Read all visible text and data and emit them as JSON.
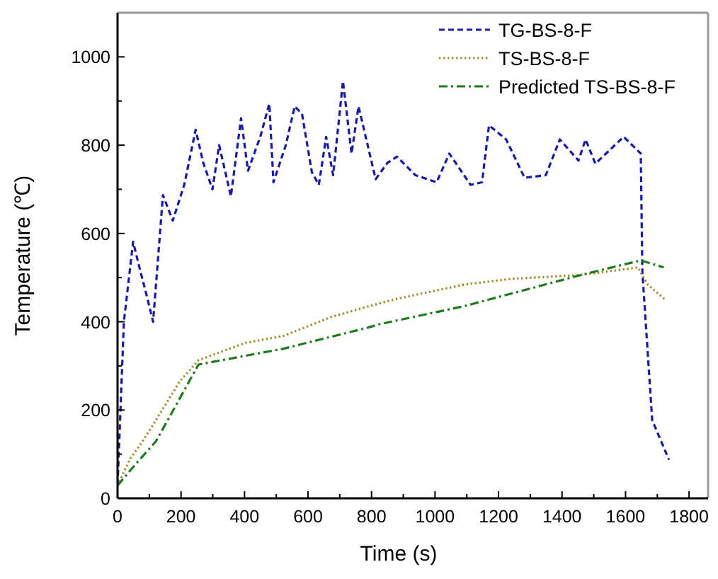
{
  "chart_data": {
    "type": "line",
    "xlabel": "Time (s)",
    "ylabel": "Temperature (℃)",
    "xlim": [
      0,
      1860
    ],
    "ylim": [
      0,
      1100
    ],
    "xticks": [
      0,
      {
        "value": 100,
        "label": null
      },
      200,
      {
        "value": 300,
        "label": null
      },
      400,
      {
        "value": 500,
        "label": null
      },
      600,
      {
        "value": 700,
        "label": null
      },
      800,
      {
        "value": 900,
        "label": null
      },
      1000,
      {
        "value": 1100,
        "label": null
      },
      1200,
      {
        "value": 1300,
        "label": null
      },
      1400,
      {
        "value": 1500,
        "label": null
      },
      1600,
      {
        "value": 1700,
        "label": null
      },
      1800
    ],
    "yticks": [
      0,
      {
        "value": 100,
        "label": null
      },
      200,
      {
        "value": 300,
        "label": null
      },
      400,
      {
        "value": 500,
        "label": null
      },
      600,
      {
        "value": 700,
        "label": null
      },
      800,
      {
        "value": 900,
        "label": null
      },
      1000
    ],
    "grid": false,
    "legend": "top right",
    "marker": "none",
    "series": [
      {
        "name": "TG-BS-8-F",
        "color": "#1a1aa8",
        "line_style": "dashed",
        "x": [
          0,
          20,
          49,
          70,
          95,
          112,
          143,
          174,
          210,
          246,
          270,
          299,
          320,
          357,
          389,
          411,
          450,
          478,
          491,
          530,
          558,
          581,
          612,
          634,
          657,
          679,
          710,
          737,
          759,
          813,
          850,
          880,
          938,
          1005,
          1045,
          1112,
          1148,
          1170,
          1224,
          1282,
          1349,
          1393,
          1452,
          1474,
          1505,
          1594,
          1648,
          1653,
          1684,
          1737
        ],
        "values": [
          30,
          400,
          581,
          520,
          450,
          400,
          687,
          629,
          710,
          835,
          760,
          700,
          800,
          684,
          861,
          742,
          820,
          894,
          716,
          800,
          888,
          871,
          739,
          710,
          819,
          732,
          945,
          781,
          888,
          723,
          760,
          774,
          732,
          716,
          781,
          710,
          716,
          845,
          813,
          726,
          732,
          813,
          765,
          813,
          758,
          819,
          781,
          513,
          177,
          87
        ]
      },
      {
        "name": "TS-BS-8-F",
        "color": "#a08c28",
        "line_style": "dotted",
        "x": [
          0,
          40,
          76,
          121,
          196,
          255,
          402,
          523,
          670,
          790,
          880,
          1090,
          1237,
          1460,
          1639,
          1670,
          1728
        ],
        "values": [
          29,
          90,
          126,
          177,
          265,
          313,
          352,
          368,
          410,
          435,
          452,
          484,
          497,
          506,
          523,
          484,
          448
        ]
      },
      {
        "name": "Predicted TS-BS-8-F",
        "color": "#1e7a1e",
        "line_style": "dashdot",
        "x": [
          0,
          60,
          121,
          255,
          523,
          790,
          822,
          1090,
          1460,
          1648,
          1720
        ],
        "values": [
          29,
          80,
          129,
          303,
          339,
          387,
          394,
          435,
          506,
          539,
          523
        ]
      }
    ]
  }
}
